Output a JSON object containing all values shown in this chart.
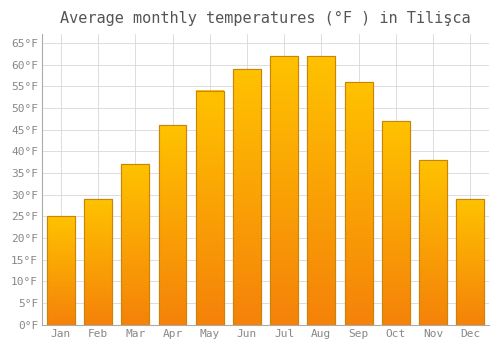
{
  "title": "Average monthly temperatures (°F ) in Tilişca",
  "months": [
    "Jan",
    "Feb",
    "Mar",
    "Apr",
    "May",
    "Jun",
    "Jul",
    "Aug",
    "Sep",
    "Oct",
    "Nov",
    "Dec"
  ],
  "values": [
    25,
    29,
    37,
    46,
    54,
    59,
    62,
    62,
    56,
    47,
    38,
    29
  ],
  "bar_color_top": "#FFC200",
  "bar_color_bottom": "#F5820A",
  "bar_edge_color": "#C8850A",
  "background_color": "#FFFFFF",
  "grid_color": "#D8D8D8",
  "ylim": [
    0,
    67
  ],
  "yticks": [
    0,
    5,
    10,
    15,
    20,
    25,
    30,
    35,
    40,
    45,
    50,
    55,
    60,
    65
  ],
  "title_fontsize": 11,
  "tick_fontsize": 8,
  "tick_color": "#888888",
  "title_color": "#555555",
  "font_family": "monospace",
  "bar_width": 0.75
}
